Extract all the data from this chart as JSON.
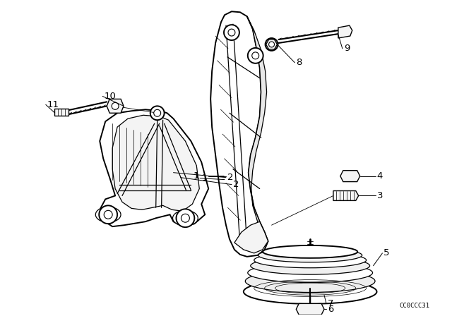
{
  "background_color": "#ffffff",
  "line_color": "#000000",
  "figure_width": 6.4,
  "figure_height": 4.48,
  "dpi": 100,
  "watermark": "CC0CCC31",
  "lw_main": 1.4,
  "lw_inner": 0.9,
  "lw_thin": 0.5
}
